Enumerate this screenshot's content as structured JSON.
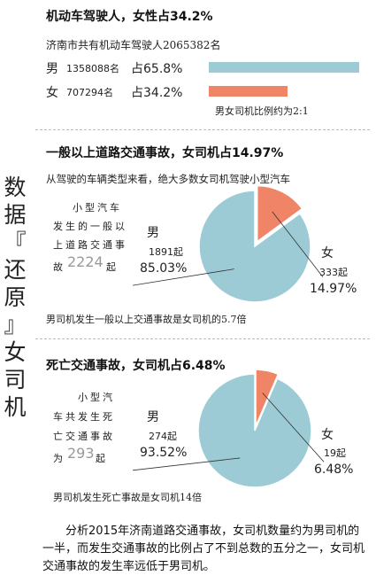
{
  "side_title": [
    "数",
    "据",
    "『",
    "还",
    "原",
    "』",
    "女",
    "司",
    "机"
  ],
  "colors": {
    "male": "#9ccbd6",
    "female": "#ef8466",
    "divider": "#bbbbbb"
  },
  "section1": {
    "title": "机动车驾驶人，女性占34.2%",
    "subtitle": "济南市共有机动车驾驶人2065382名",
    "male": {
      "label": "男",
      "count": "1358088名",
      "share_text": "占65.8%",
      "share": 65.8
    },
    "female": {
      "label": "女",
      "count": "707294名",
      "share_text": "占34.2%",
      "share": 34.2
    },
    "ratio_note": "男女司机比例约为2:1"
  },
  "section2": {
    "title": "一般以上道路交通事故，女司机占14.97%",
    "subtitle": "从驾驶的车辆类型来看，绝大多数女司机驾驶小型汽车",
    "desc_lines": [
      "小型汽车",
      "发生的一般以",
      "上道路交通事"
    ],
    "desc_prefix": "故",
    "desc_number": "2224",
    "desc_suffix": "起",
    "male": {
      "label": "男",
      "count": "1891起",
      "pct": "85.03%"
    },
    "female": {
      "label": "女",
      "count": "333起",
      "pct": "14.97%"
    },
    "note": "男司机发生一般以上交通事故是女司机的5.7倍"
  },
  "section3": {
    "title": "死亡交通事故，女司机占6.48%",
    "desc_lines": [
      "小型汽",
      "车共发生死",
      "亡交通事故"
    ],
    "desc_prefix": "为",
    "desc_number": "293",
    "desc_suffix": "起",
    "male": {
      "label": "男",
      "count": "274起",
      "pct": "93.52%"
    },
    "female": {
      "label": "女",
      "count": "19起",
      "pct": "6.48%"
    },
    "note": "男司机发生死亡事故是女司机14倍"
  },
  "footer": "分析2015年济南道路交通事故，女司机数量约为男司机的一半，而发生交通事故的比例占了不到总数的五分之一，女司机交通事故的发生率远低于男司机。",
  "chart_data": [
    {
      "type": "bar",
      "title": "机动车驾驶人，女性占34.2%",
      "categories": [
        "男",
        "女"
      ],
      "values": [
        1358088,
        707294
      ],
      "shares_percent": [
        65.8,
        34.2
      ]
    },
    {
      "type": "pie",
      "title": "一般以上道路交通事故，女司机占14.97%",
      "categories": [
        "男",
        "女"
      ],
      "values": [
        1891,
        333
      ],
      "shares_percent": [
        85.03,
        14.97
      ]
    },
    {
      "type": "pie",
      "title": "死亡交通事故，女司机占6.48%",
      "categories": [
        "男",
        "女"
      ],
      "values": [
        274,
        19
      ],
      "shares_percent": [
        93.52,
        6.48
      ]
    }
  ]
}
